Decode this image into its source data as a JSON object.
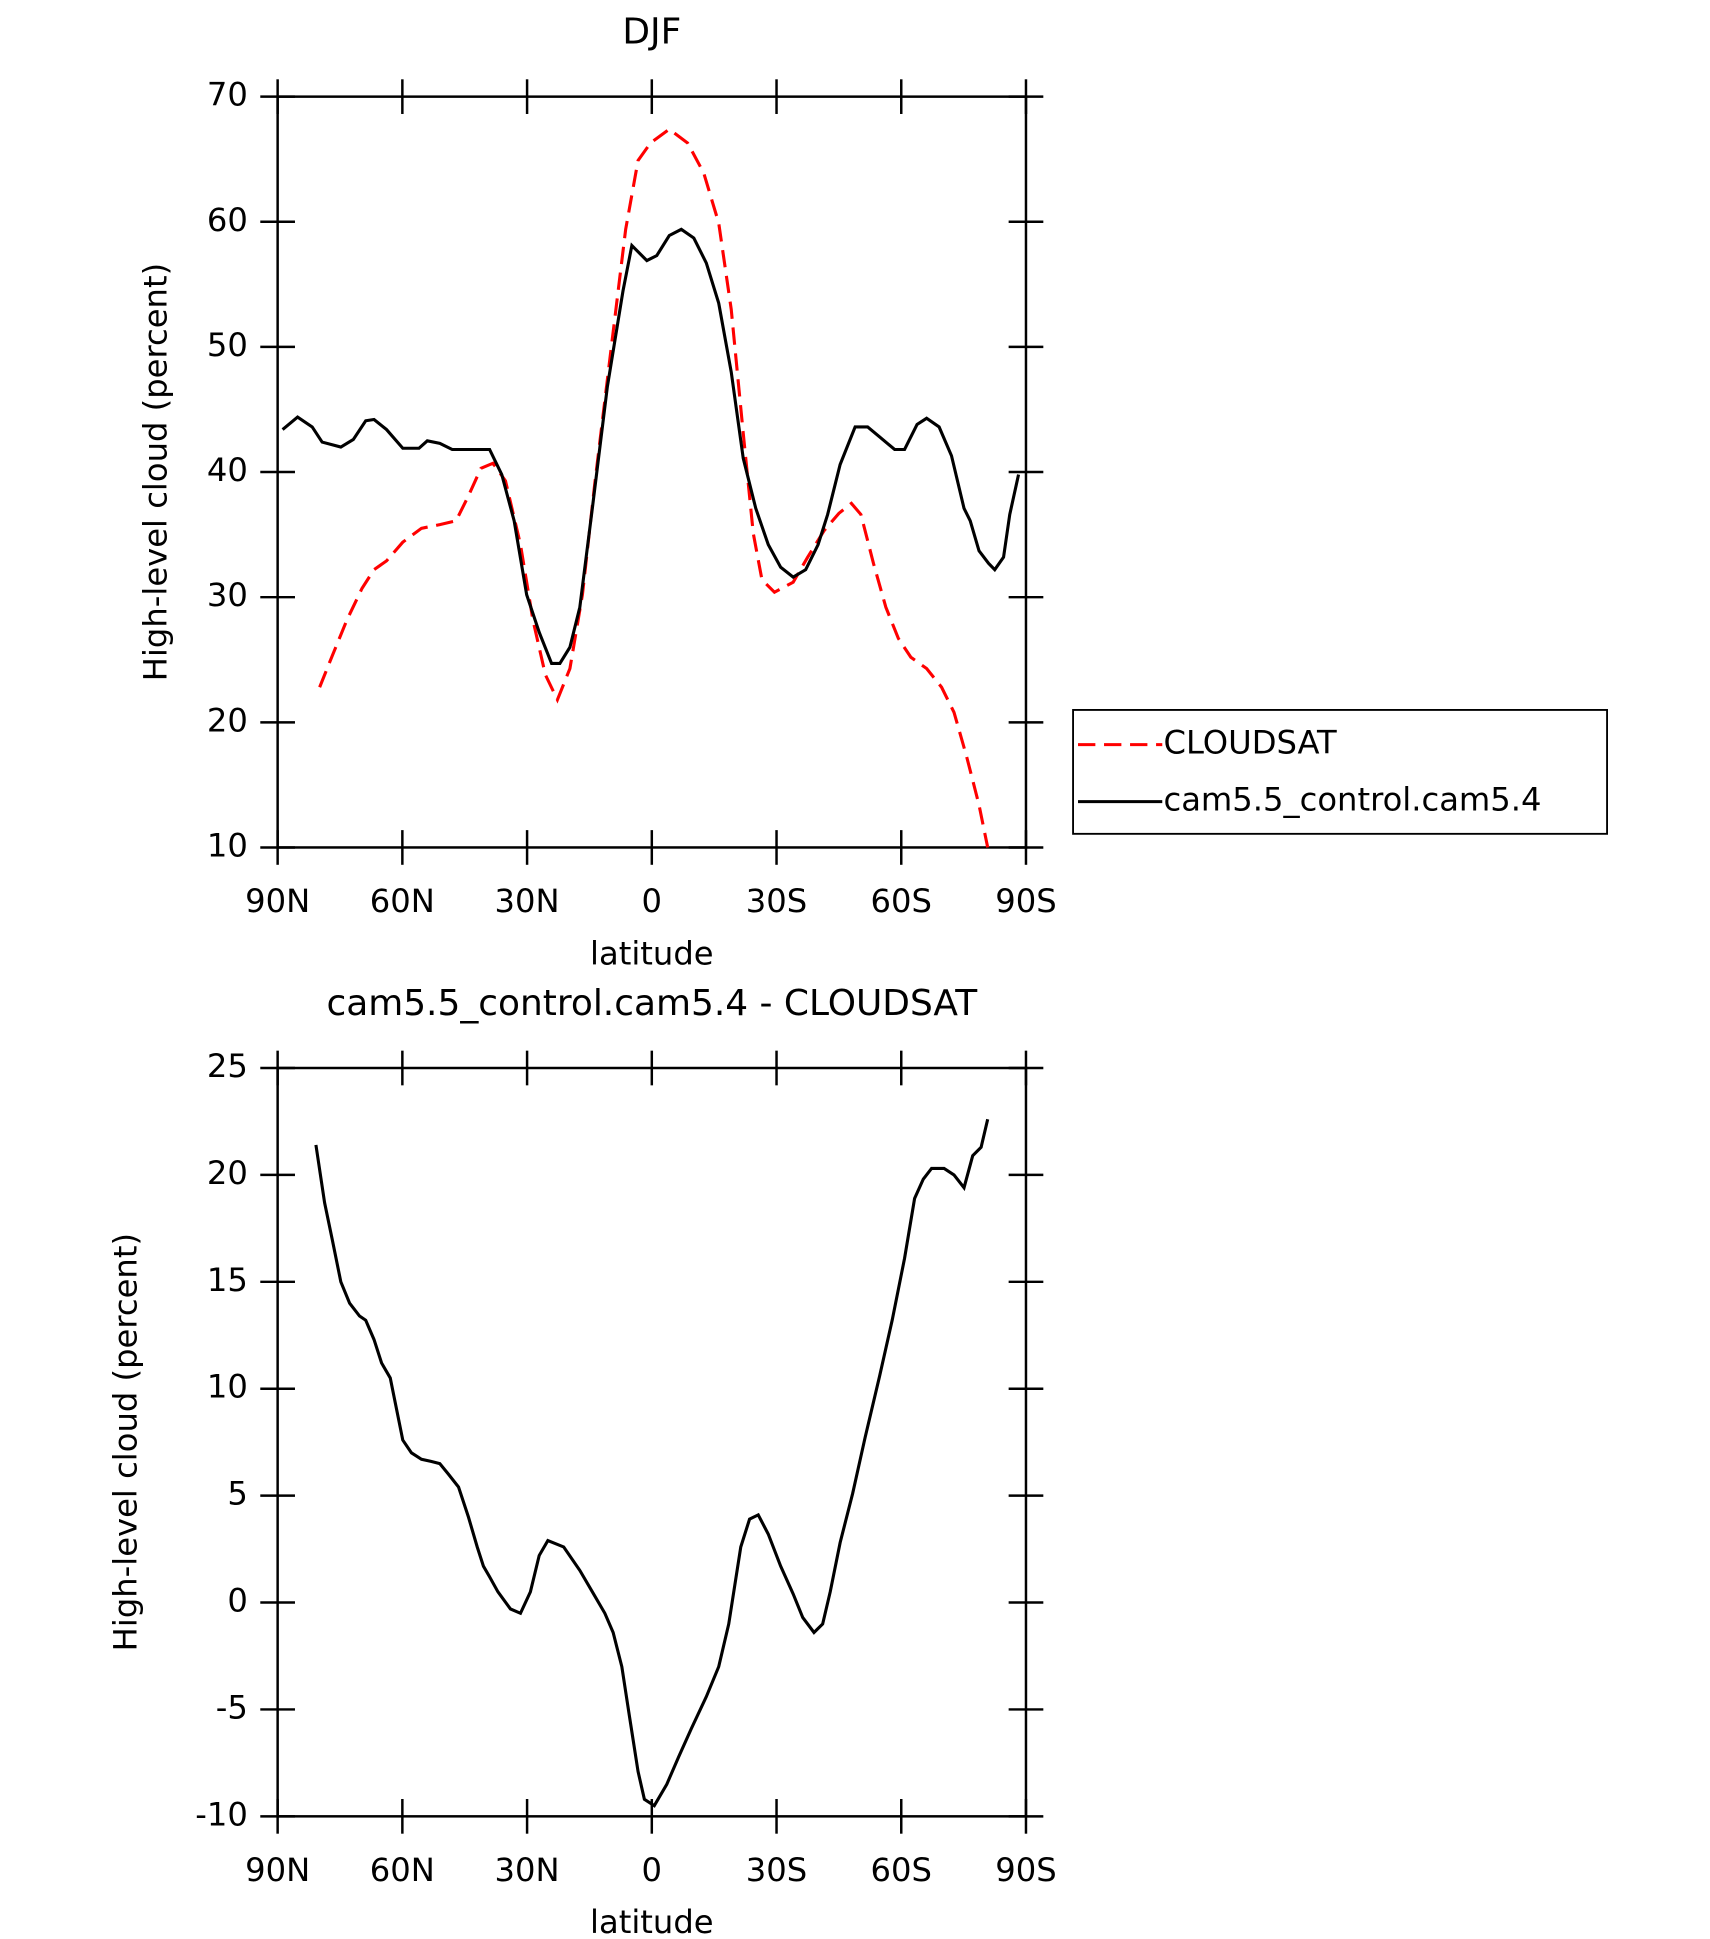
{
  "chart_data": [
    {
      "type": "line",
      "title": "DJF",
      "xlabel": "latitude",
      "ylabel": "High-level cloud (percent)",
      "xlim": [
        90,
        -90
      ],
      "xticks": [
        {
          "value": 90,
          "label": "90N"
        },
        {
          "value": 60,
          "label": "60N"
        },
        {
          "value": 30,
          "label": "30N"
        },
        0,
        {
          "value": -30,
          "label": "30S"
        },
        {
          "value": -60,
          "label": "60S"
        },
        {
          "value": -90,
          "label": "90S"
        }
      ],
      "ylim": [
        10,
        70
      ],
      "yticks": [
        10,
        20,
        30,
        40,
        50,
        60,
        70
      ],
      "legend": "right",
      "series": [
        {
          "name": "CLOUDSAT",
          "color": "#ff0000",
          "dashed": true,
          "x": [
            79.9,
            76.9,
            73.3,
            69.7,
            66.8,
            63.8,
            59.9,
            55.4,
            51.0,
            47.1,
            44.1,
            41.1,
            38.2,
            35.2,
            31.6,
            28.6,
            25.6,
            22.7,
            19.7,
            16.7,
            13.7,
            10.1,
            6.3,
            3.3,
            0.3,
            -4.2,
            -8.6,
            -12.5,
            -16.1,
            -19.1,
            -22.0,
            -24.4,
            -26.5,
            -29.5,
            -34.0,
            -37.5,
            -41.4,
            -45.0,
            -48.0,
            -50.3,
            -53.3,
            -56.3,
            -59.3,
            -62.3,
            -66.1,
            -69.7,
            -72.7,
            -75.7,
            -78.7,
            -80.8
          ],
          "values": [
            22.8,
            25.3,
            28.2,
            30.7,
            32.2,
            32.9,
            34.4,
            35.5,
            35.8,
            36.1,
            38.1,
            40.3,
            40.7,
            39.3,
            34.2,
            28.2,
            23.8,
            21.8,
            24.3,
            30.2,
            39.1,
            49.0,
            59.4,
            64.9,
            66.3,
            67.4,
            66.3,
            63.9,
            59.9,
            53.0,
            43.1,
            35.1,
            31.4,
            30.4,
            31.2,
            33.2,
            35.3,
            36.7,
            37.5,
            36.6,
            32.7,
            29.2,
            26.7,
            25.2,
            24.3,
            22.8,
            20.8,
            17.3,
            13.4,
            10.0
          ]
        },
        {
          "name": "cam5.5_control.cam5.4",
          "color": "#000000",
          "dashed": false,
          "x": [
            88.8,
            85.2,
            81.7,
            79.3,
            74.8,
            71.8,
            68.8,
            66.8,
            63.8,
            59.9,
            56.0,
            54.0,
            51.0,
            48.0,
            45.0,
            42.0,
            39.0,
            36.1,
            33.1,
            30.1,
            27.1,
            24.1,
            22.1,
            19.7,
            17.3,
            14.3,
            10.7,
            6.9,
            4.8,
            1.2,
            -1.2,
            -4.2,
            -7.1,
            -10.1,
            -13.1,
            -16.1,
            -19.1,
            -22.0,
            -25.0,
            -28.0,
            -31.0,
            -34.0,
            -37.0,
            -40.0,
            -42.3,
            -45.3,
            -48.9,
            -51.9,
            -54.8,
            -58.4,
            -60.8,
            -63.8,
            -66.1,
            -69.1,
            -72.1,
            -75.1,
            -76.6,
            -78.7,
            -81.0,
            -82.5,
            -84.6,
            -86.1,
            -88.2
          ],
          "values": [
            43.4,
            44.4,
            43.6,
            42.4,
            42.0,
            42.6,
            44.1,
            44.2,
            43.4,
            41.9,
            41.9,
            42.5,
            42.3,
            41.8,
            41.8,
            41.8,
            41.8,
            39.8,
            36.1,
            30.2,
            27.2,
            24.7,
            24.7,
            26.0,
            29.2,
            37.1,
            46.8,
            54.5,
            58.1,
            56.9,
            57.3,
            58.9,
            59.4,
            58.7,
            56.7,
            53.5,
            48.0,
            41.1,
            37.1,
            34.2,
            32.4,
            31.6,
            32.2,
            34.2,
            36.6,
            40.6,
            43.6,
            43.6,
            42.8,
            41.8,
            41.8,
            43.8,
            44.3,
            43.6,
            41.3,
            37.1,
            36.1,
            33.7,
            32.7,
            32.2,
            33.2,
            36.6,
            39.8
          ]
        }
      ]
    },
    {
      "type": "line",
      "title": "cam5.5_control.cam5.4 - CLOUDSAT",
      "xlabel": "latitude",
      "ylabel": "High-level cloud (percent)",
      "xlim": [
        90,
        -90
      ],
      "xticks": [
        {
          "value": 90,
          "label": "90N"
        },
        {
          "value": 60,
          "label": "60N"
        },
        {
          "value": 30,
          "label": "30N"
        },
        0,
        {
          "value": -30,
          "label": "30S"
        },
        {
          "value": -60,
          "label": "60S"
        },
        {
          "value": -90,
          "label": "90S"
        }
      ],
      "ylim": [
        -10,
        25
      ],
      "yticks": [
        -10,
        -5,
        0,
        5,
        10,
        15,
        20,
        25
      ],
      "color": "#000000",
      "x": [
        80.8,
        78.7,
        76.9,
        74.8,
        72.7,
        70.3,
        68.8,
        66.8,
        65.0,
        62.9,
        59.9,
        57.8,
        55.4,
        53.1,
        51.0,
        48.9,
        46.5,
        44.1,
        42.0,
        40.5,
        39.0,
        37.0,
        34.0,
        31.6,
        29.2,
        27.1,
        25.0,
        21.2,
        17.3,
        14.3,
        11.3,
        9.3,
        7.2,
        5.4,
        3.3,
        1.8,
        -0.6,
        -3.6,
        -6.5,
        -9.5,
        -13.1,
        -16.1,
        -18.5,
        -21.4,
        -23.5,
        -25.6,
        -28.0,
        -31.0,
        -34.0,
        -36.3,
        -39.0,
        -41.1,
        -42.9,
        -45.3,
        -48.3,
        -51.3,
        -54.8,
        -57.8,
        -60.8,
        -63.2,
        -65.3,
        -67.3,
        -70.3,
        -72.7,
        -75.1,
        -77.2,
        -79.2,
        -80.8
      ],
      "values": [
        21.4,
        18.7,
        17.0,
        15.0,
        14.0,
        13.4,
        13.2,
        12.3,
        11.2,
        10.5,
        7.6,
        7.0,
        6.7,
        6.6,
        6.5,
        6.0,
        5.4,
        4.0,
        2.6,
        1.7,
        1.2,
        0.5,
        -0.3,
        -0.5,
        0.5,
        2.2,
        2.9,
        2.6,
        1.5,
        0.5,
        -0.5,
        -1.4,
        -3.0,
        -5.3,
        -7.9,
        -9.2,
        -9.5,
        -8.5,
        -7.2,
        -5.9,
        -4.4,
        -3.0,
        -1.0,
        2.6,
        3.9,
        4.1,
        3.2,
        1.7,
        0.4,
        -0.7,
        -1.4,
        -1.0,
        0.5,
        2.8,
        5.1,
        7.7,
        10.6,
        13.2,
        16.1,
        18.9,
        19.8,
        20.3,
        20.3,
        20.0,
        19.4,
        20.9,
        21.3,
        22.6
      ]
    }
  ]
}
